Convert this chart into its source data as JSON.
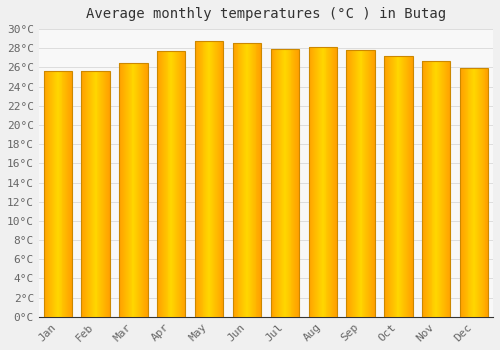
{
  "title": "Average monthly temperatures (°C ) in Butag",
  "months": [
    "Jan",
    "Feb",
    "Mar",
    "Apr",
    "May",
    "Jun",
    "Jul",
    "Aug",
    "Sep",
    "Oct",
    "Nov",
    "Dec"
  ],
  "temperatures": [
    25.6,
    25.6,
    26.5,
    27.7,
    28.8,
    28.5,
    27.9,
    28.1,
    27.8,
    27.2,
    26.7,
    25.9
  ],
  "bar_color_center": "#FFD700",
  "bar_color_edge": "#FFA000",
  "bar_border_color": "#CC8800",
  "background_color": "#f0f0f0",
  "plot_bg_color": "#f8f8f8",
  "grid_color": "#dddddd",
  "title_color": "#333333",
  "tick_label_color": "#666666",
  "ylim": [
    0,
    30
  ],
  "yticks": [
    0,
    2,
    4,
    6,
    8,
    10,
    12,
    14,
    16,
    18,
    20,
    22,
    24,
    26,
    28,
    30
  ],
  "title_fontsize": 10,
  "tick_fontsize": 8,
  "bar_width": 0.75,
  "font_family": "monospace"
}
